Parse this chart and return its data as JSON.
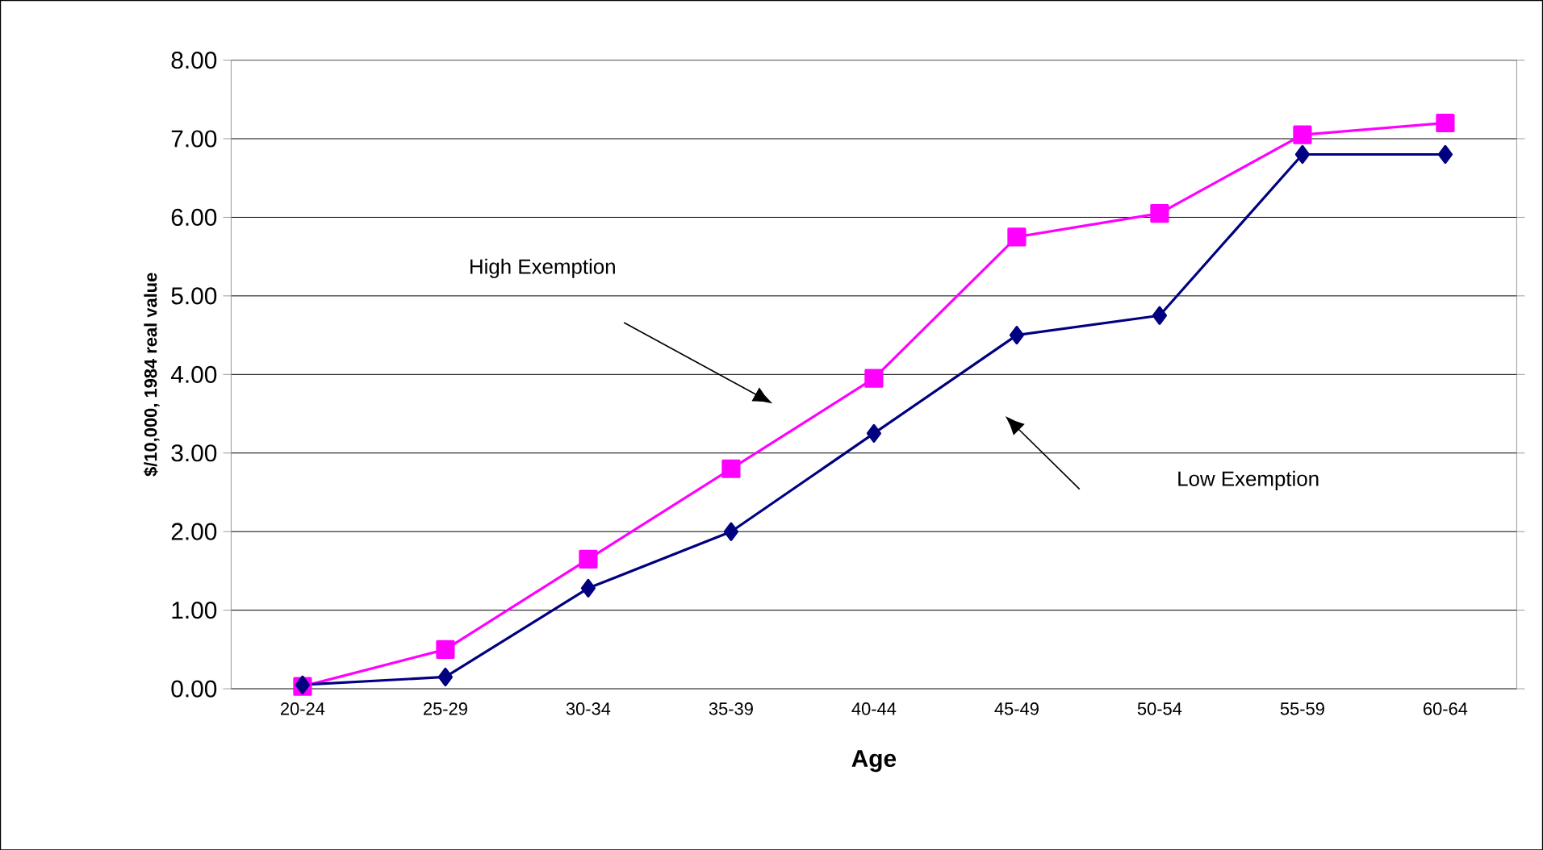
{
  "chart_data": {
    "type": "line",
    "xlabel": "Age",
    "ylabel": "$/10,000, 1984 real value",
    "categories": [
      "20-24",
      "25-29",
      "30-34",
      "35-39",
      "40-44",
      "45-49",
      "50-54",
      "55-59",
      "60-64"
    ],
    "series": [
      {
        "color": "#ff00ff",
        "marker": "square",
        "values": [
          0.03,
          0.5,
          1.65,
          2.8,
          3.95,
          5.75,
          6.05,
          7.05,
          7.2
        ]
      },
      {
        "color": "#000080",
        "marker": "diamond",
        "values": [
          0.05,
          0.15,
          1.28,
          2.0,
          3.25,
          4.5,
          4.75,
          6.8,
          6.8
        ]
      }
    ],
    "ylim": [
      0,
      8
    ],
    "yticks": [
      {
        "value": 0,
        "label": "0.00"
      },
      {
        "value": 1,
        "label": "1.00"
      },
      {
        "value": 2,
        "label": "2.00"
      },
      {
        "value": 3,
        "label": "3.00"
      },
      {
        "value": 4,
        "label": "4.00"
      },
      {
        "value": 5,
        "label": "5.00"
      },
      {
        "value": 6,
        "label": "6.00"
      },
      {
        "value": 7,
        "label": "7.00"
      },
      {
        "value": 8,
        "label": "8.00"
      }
    ],
    "annotations": [
      "High Exemption",
      "Low Exemption"
    ],
    "grid": "y"
  }
}
